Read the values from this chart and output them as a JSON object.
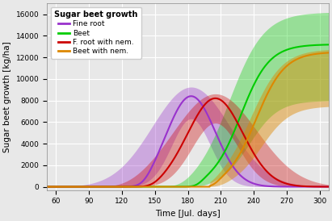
{
  "title": "Sugar beet growth",
  "xlabel": "Time [Jul. days]",
  "ylabel": "Sugar beet growth [kg/ha]",
  "xlim": [
    52,
    308
  ],
  "ylim": [
    -300,
    17000
  ],
  "xticks": [
    60,
    90,
    120,
    150,
    180,
    210,
    240,
    270,
    300
  ],
  "yticks": [
    0,
    2000,
    4000,
    6000,
    8000,
    10000,
    12000,
    14000,
    16000
  ],
  "colors": {
    "fine_root": "#9932CC",
    "beet": "#00CC00",
    "fine_root_nem": "#CC0000",
    "beet_nem": "#DD8800"
  },
  "labels": {
    "fine_root": "Fine root",
    "beet": "Beet",
    "fine_root_nem": "F. root with nem.",
    "beet_nem": "Beet with nem."
  },
  "background_color": "#E8E8E8",
  "grid_color": "#FFFFFF",
  "legend_bg": "#FFFFFF"
}
